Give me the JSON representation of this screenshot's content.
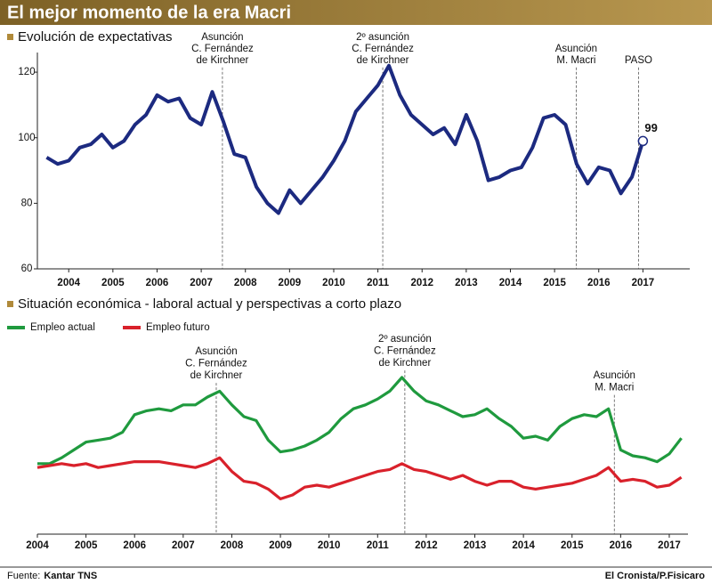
{
  "header": {
    "title": "El mejor momento de la era Macri"
  },
  "chart_data": [
    {
      "type": "line",
      "title": "Evolución de expectativas",
      "xlim": [
        2003.75,
        2018.5
      ],
      "ylim": [
        60,
        126
      ],
      "xticks": [
        {
          "value": 2004.5,
          "label": "2004"
        },
        {
          "value": 2005.5,
          "label": "2005"
        },
        {
          "value": 2006.5,
          "label": "2006"
        },
        {
          "value": 2007.5,
          "label": "2007"
        },
        {
          "value": 2008.5,
          "label": "2008"
        },
        {
          "value": 2009.5,
          "label": "2009"
        },
        {
          "value": 2010.5,
          "label": "2010"
        },
        {
          "value": 2011.5,
          "label": "2011"
        },
        {
          "value": 2012.5,
          "label": "2012"
        },
        {
          "value": 2013.5,
          "label": "2013"
        },
        {
          "value": 2014.5,
          "label": "2014"
        },
        {
          "value": 2015.5,
          "label": "2015"
        },
        {
          "value": 2016.5,
          "label": "2016"
        },
        {
          "value": 2017.5,
          "label": "2017"
        }
      ],
      "yticks": [
        60,
        80,
        100,
        120
      ],
      "x": [
        2004,
        2004.25,
        2004.5,
        2004.75,
        2005,
        2005.25,
        2005.5,
        2005.75,
        2006,
        2006.25,
        2006.5,
        2006.75,
        2007,
        2007.25,
        2007.5,
        2007.75,
        2008,
        2008.25,
        2008.5,
        2008.75,
        2009,
        2009.25,
        2009.5,
        2009.75,
        2010,
        2010.25,
        2010.5,
        2010.75,
        2011,
        2011.25,
        2011.5,
        2011.75,
        2012,
        2012.25,
        2012.5,
        2012.75,
        2013,
        2013.25,
        2013.5,
        2013.75,
        2014,
        2014.25,
        2014.5,
        2014.75,
        2015,
        2015.25,
        2015.5,
        2015.75,
        2016,
        2016.25,
        2016.5,
        2016.75,
        2017,
        2017.25,
        2017.5
      ],
      "series": [
        {
          "color": "#1c2a80",
          "values": [
            94,
            92,
            93,
            97,
            98,
            101,
            97,
            99,
            104,
            107,
            113,
            111,
            112,
            106,
            104,
            114,
            105,
            95,
            94,
            85,
            80,
            77,
            84,
            80,
            84,
            88,
            93,
            99,
            108,
            112,
            116,
            122,
            113,
            107,
            104,
            101,
            103,
            98,
            107,
            99,
            87,
            88,
            90,
            91,
            97,
            106,
            107,
            104,
            92,
            86,
            91,
            90,
            83,
            88,
            99
          ]
        }
      ],
      "annotations": [
        {
          "x": 2007.98,
          "lines": [
            "Asunción",
            "C. Fernández",
            "de Kirchner"
          ]
        },
        {
          "x": 2011.61,
          "lines": [
            "2º asunción",
            "C. Fernández",
            "de Kirchner"
          ]
        },
        {
          "x": 2015.99,
          "lines": [
            "Asunción",
            "M. Macri"
          ]
        },
        {
          "x": 2017.4,
          "lines": [
            "PASO"
          ]
        }
      ]
    },
    {
      "type": "line",
      "title": "Situación económica - laboral actual y perspectivas a corto plazo",
      "xlim": [
        2004,
        2017.33
      ],
      "ylim": [
        0,
        100
      ],
      "xticks": [
        2004,
        2005,
        2006,
        2007,
        2008,
        2009,
        2010,
        2011,
        2012,
        2013,
        2014,
        2015,
        2016,
        2017
      ],
      "x": [
        2004,
        2004.25,
        2004.5,
        2004.75,
        2005,
        2005.25,
        2005.5,
        2005.75,
        2006,
        2006.25,
        2006.5,
        2006.75,
        2007,
        2007.25,
        2007.5,
        2007.75,
        2008,
        2008.25,
        2008.5,
        2008.75,
        2009,
        2009.25,
        2009.5,
        2009.75,
        2010,
        2010.25,
        2010.5,
        2010.75,
        2011,
        2011.25,
        2011.5,
        2011.75,
        2012,
        2012.25,
        2012.5,
        2012.75,
        2013,
        2013.25,
        2013.5,
        2013.75,
        2014,
        2014.25,
        2014.5,
        2014.75,
        2015,
        2015.25,
        2015.5,
        2015.75,
        2016,
        2016.25,
        2016.5,
        2016.75,
        2017,
        2017.25
      ],
      "series": [
        {
          "name": "Empleo actual",
          "color": "#1f9a3e",
          "values": [
            36,
            36,
            39,
            43,
            47,
            48,
            49,
            52,
            61,
            63,
            64,
            63,
            66,
            66,
            70,
            73,
            66,
            60,
            58,
            48,
            42,
            43,
            45,
            48,
            52,
            59,
            64,
            66,
            69,
            73,
            80,
            73,
            68,
            66,
            63,
            60,
            61,
            64,
            59,
            55,
            49,
            50,
            48,
            55,
            59,
            61,
            60,
            64,
            43,
            40,
            39,
            37,
            41,
            49
          ]
        },
        {
          "name": "Empleo futuro",
          "color": "#d9212b",
          "values": [
            34,
            35,
            36,
            35,
            36,
            34,
            35,
            36,
            37,
            37,
            37,
            36,
            35,
            34,
            36,
            39,
            32,
            27,
            26,
            23,
            18,
            20,
            24,
            25,
            24,
            26,
            28,
            30,
            32,
            33,
            36,
            33,
            32,
            30,
            28,
            30,
            27,
            25,
            27,
            27,
            24,
            23,
            24,
            25,
            26,
            28,
            30,
            34,
            27,
            28,
            27,
            24,
            25,
            29
          ]
        }
      ],
      "annotations": [
        {
          "x": 2007.68,
          "lines": [
            "Asunción",
            "C. Fernández",
            "de Kirchner"
          ]
        },
        {
          "x": 2011.56,
          "lines": [
            "2º asunción",
            "C. Fernández",
            "de Kirchner"
          ]
        },
        {
          "x": 2015.87,
          "lines": [
            "Asunción",
            "M. Macri"
          ]
        }
      ]
    }
  ],
  "footer": {
    "source_label": "Fuente:",
    "source": "Kantar TNS",
    "credit": "El Cronista/P.Fisicaro"
  }
}
